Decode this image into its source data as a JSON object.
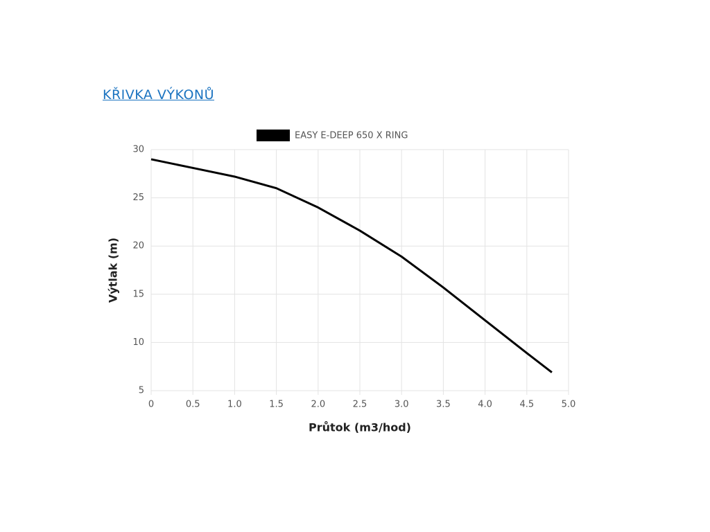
{
  "heading": "KŘIVKA VÝKONŮ",
  "chart_data": {
    "type": "line",
    "x_label": "Průtok (m3/hod)",
    "y_label": "Výtlak (m)",
    "x": [
      0,
      0.5,
      1.0,
      1.5,
      2.0,
      2.5,
      3.0,
      3.5,
      4.0,
      4.5,
      4.8
    ],
    "series": [
      {
        "name": "EASY E-DEEP 650 X RING",
        "color": "#000000",
        "values": [
          29,
          28.1,
          27.2,
          26.0,
          24.0,
          21.6,
          18.9,
          15.7,
          12.3,
          8.9,
          6.9
        ]
      }
    ],
    "xlim": [
      0,
      5
    ],
    "xticks": [
      0,
      0.5,
      {
        "value": 1,
        "label": "1.0"
      },
      1.5,
      {
        "value": 2,
        "label": "2.0"
      },
      2.5,
      {
        "value": 3,
        "label": "3.0"
      },
      3.5,
      {
        "value": 4,
        "label": "4.0"
      },
      4.5,
      {
        "value": 5,
        "label": "5.0"
      }
    ],
    "ylim": [
      5,
      30
    ],
    "yticks": [
      5,
      10,
      15,
      20,
      25,
      30
    ],
    "grid": true,
    "legend": "top"
  }
}
